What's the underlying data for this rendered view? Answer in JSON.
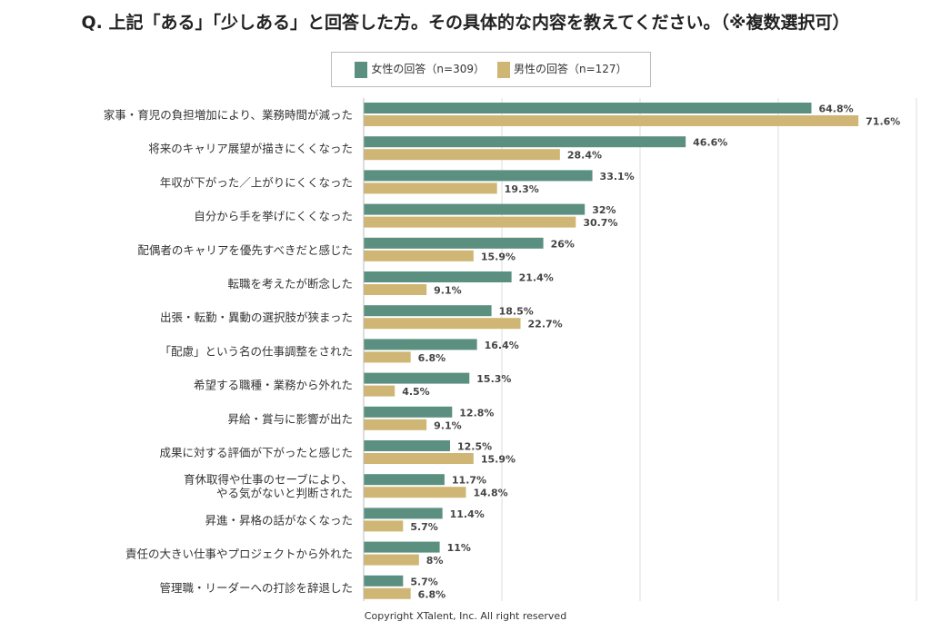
{
  "title": "Q. 上記「ある」「少しある」と回答した方。その具体的な内容を教えてください。（※複数選択可）",
  "copyright": "Copyright XTalent, Inc. All right reserved",
  "chart_data": {
    "type": "bar",
    "orientation": "horizontal",
    "xlim": [
      0,
      80
    ],
    "grid": true,
    "legend": "top",
    "categories": [
      "家事・育児の負担増加により、業務時間が減った",
      "将来のキャリア展望が描きにくくなった",
      "年収が下がった／上がりにくくなった",
      "自分から手を挙げにくくなった",
      "配偶者のキャリアを優先すべきだと感じた",
      "転職を考えたが断念した",
      "出張・転勤・異動の選択肢が狭まった",
      "「配慮」という名の仕事調整をされた",
      "希望する職種・業務から外れた",
      "昇給・賞与に影響が出た",
      "成果に対する評価が下がったと感じた",
      "育休取得や仕事のセーブにより、\nやる気がないと判断された",
      "昇進・昇格の話がなくなった",
      "責任の大きい仕事やプロジェクトから外れた",
      "管理職・リーダーへの打診を辞退した"
    ],
    "series": [
      {
        "name": "女性の回答（n=309）",
        "color": "#5b8f7f",
        "values": [
          64.8,
          46.6,
          33.1,
          32,
          26,
          21.4,
          18.5,
          16.4,
          15.3,
          12.8,
          12.5,
          11.7,
          11.4,
          11,
          5.7
        ]
      },
      {
        "name": "男性の回答（n=127）",
        "color": "#cfb674",
        "values": [
          71.6,
          28.4,
          19.3,
          30.7,
          15.9,
          9.1,
          22.7,
          6.8,
          4.5,
          9.1,
          15.9,
          14.8,
          5.7,
          8,
          6.8
        ]
      }
    ]
  }
}
